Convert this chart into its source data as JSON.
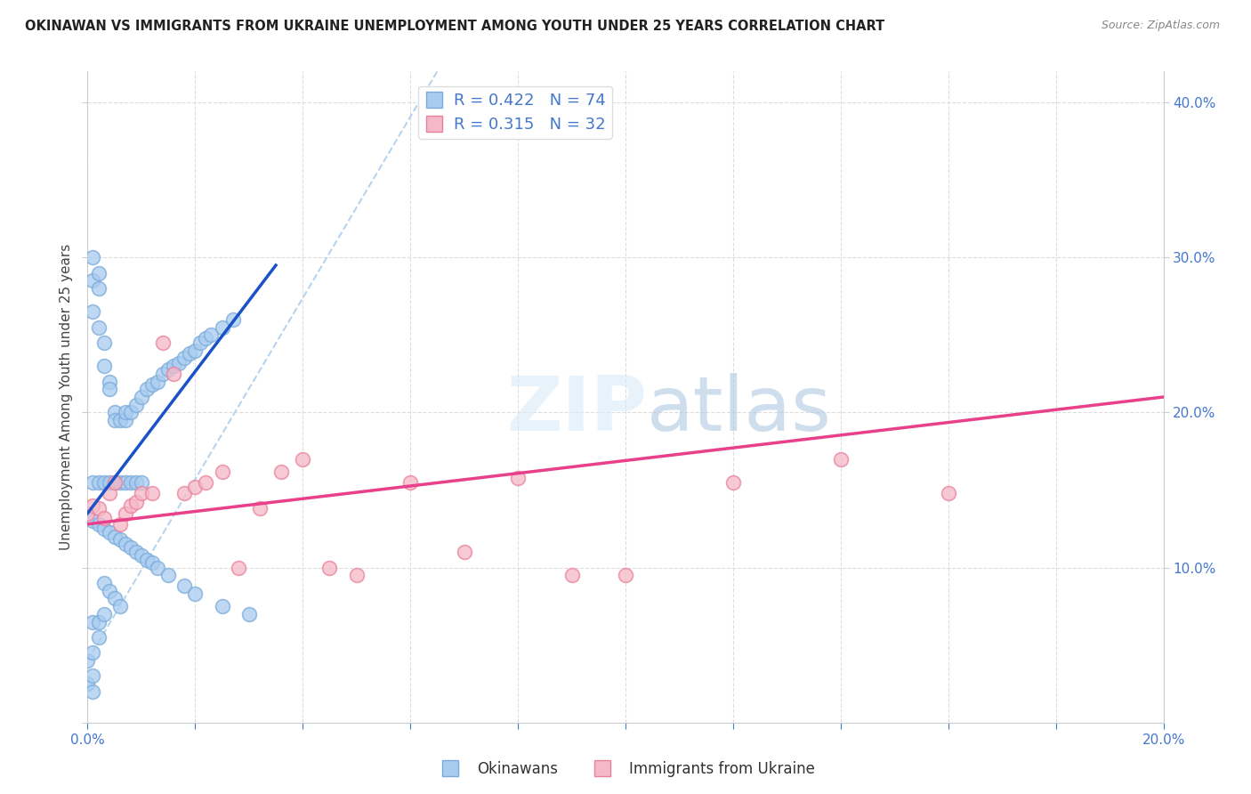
{
  "title": "OKINAWAN VS IMMIGRANTS FROM UKRAINE UNEMPLOYMENT AMONG YOUTH UNDER 25 YEARS CORRELATION CHART",
  "source": "Source: ZipAtlas.com",
  "ylabel": "Unemployment Among Youth under 25 years",
  "legend_label_1": "Okinawans",
  "legend_label_2": "Immigrants from Ukraine",
  "R1": 0.422,
  "N1": 74,
  "R2": 0.315,
  "N2": 32,
  "color1_fill": "#A8CCF0",
  "color1_edge": "#7AAADA",
  "color2_fill": "#F5B8C8",
  "color2_edge": "#E8809A",
  "trend1_color": "#1A52C8",
  "trend2_color": "#E8408A",
  "diag_color": "#AACCEE",
  "xlim": [
    0.0,
    0.2
  ],
  "ylim": [
    0.0,
    0.42
  ],
  "yticks_right": [
    0.1,
    0.2,
    0.3,
    0.4
  ],
  "grid_color": "#DDDDDD",
  "tick_label_color": "#4477CC",
  "blue_x": [
    0.0,
    0.0,
    0.001,
    0.001,
    0.001,
    0.001,
    0.001,
    0.001,
    0.002,
    0.002,
    0.002,
    0.002,
    0.002,
    0.002,
    0.003,
    0.003,
    0.003,
    0.003,
    0.003,
    0.004,
    0.004,
    0.004,
    0.004,
    0.005,
    0.005,
    0.005,
    0.005,
    0.006,
    0.006,
    0.006,
    0.007,
    0.007,
    0.007,
    0.008,
    0.008,
    0.009,
    0.009,
    0.01,
    0.01,
    0.011,
    0.012,
    0.013,
    0.014,
    0.015,
    0.016,
    0.017,
    0.018,
    0.019,
    0.02,
    0.021,
    0.022,
    0.023,
    0.025,
    0.027,
    0.001,
    0.002,
    0.003,
    0.004,
    0.005,
    0.006,
    0.007,
    0.008,
    0.009,
    0.01,
    0.011,
    0.012,
    0.013,
    0.015,
    0.018,
    0.02,
    0.025,
    0.03,
    0.001,
    0.001
  ],
  "blue_y": [
    0.025,
    0.04,
    0.3,
    0.285,
    0.265,
    0.155,
    0.065,
    0.045,
    0.29,
    0.28,
    0.255,
    0.155,
    0.065,
    0.055,
    0.245,
    0.23,
    0.155,
    0.09,
    0.07,
    0.22,
    0.215,
    0.155,
    0.085,
    0.2,
    0.195,
    0.155,
    0.08,
    0.195,
    0.155,
    0.075,
    0.195,
    0.2,
    0.155,
    0.2,
    0.155,
    0.205,
    0.155,
    0.21,
    0.155,
    0.215,
    0.218,
    0.22,
    0.225,
    0.228,
    0.23,
    0.232,
    0.235,
    0.238,
    0.24,
    0.245,
    0.248,
    0.25,
    0.255,
    0.26,
    0.13,
    0.128,
    0.125,
    0.123,
    0.12,
    0.118,
    0.115,
    0.113,
    0.11,
    0.108,
    0.105,
    0.103,
    0.1,
    0.095,
    0.088,
    0.083,
    0.075,
    0.07,
    0.03,
    0.02
  ],
  "pink_x": [
    0.0,
    0.001,
    0.002,
    0.003,
    0.004,
    0.005,
    0.006,
    0.007,
    0.008,
    0.009,
    0.01,
    0.012,
    0.014,
    0.016,
    0.018,
    0.02,
    0.022,
    0.025,
    0.028,
    0.032,
    0.036,
    0.04,
    0.045,
    0.05,
    0.06,
    0.07,
    0.08,
    0.09,
    0.1,
    0.12,
    0.14,
    0.16
  ],
  "pink_y": [
    0.135,
    0.14,
    0.138,
    0.132,
    0.148,
    0.155,
    0.128,
    0.135,
    0.14,
    0.142,
    0.148,
    0.148,
    0.245,
    0.225,
    0.148,
    0.152,
    0.155,
    0.162,
    0.1,
    0.138,
    0.162,
    0.17,
    0.1,
    0.095,
    0.155,
    0.11,
    0.158,
    0.095,
    0.095,
    0.155,
    0.17,
    0.148
  ],
  "trend1_x": [
    0.0,
    0.035
  ],
  "trend1_y": [
    0.135,
    0.295
  ],
  "trend2_x": [
    0.0,
    0.2
  ],
  "trend2_y": [
    0.128,
    0.21
  ]
}
